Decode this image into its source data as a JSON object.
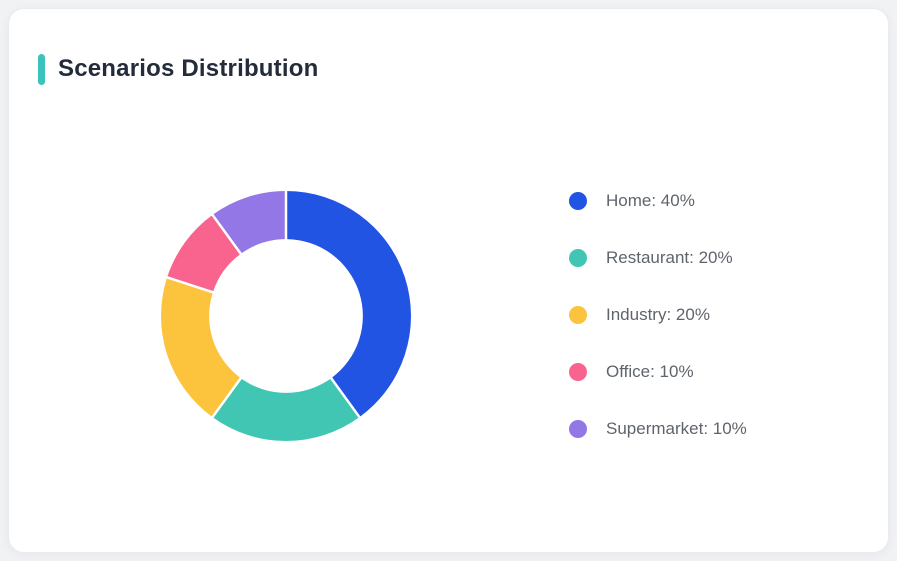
{
  "card": {
    "title": "Scenarios Distribution",
    "accent_color": "#3bc3bb"
  },
  "theme": {
    "page_bg": "#f1f2f4",
    "card_bg": "#ffffff",
    "card_border": "#e9ebef",
    "title_color": "#242b3a",
    "legend_text_color": "#5f646b",
    "slice_gap_color": "#ffffff"
  },
  "chart_data": {
    "type": "pie",
    "donut": true,
    "title": "Scenarios Distribution",
    "categories": [
      "Home",
      "Restaurant",
      "Industry",
      "Office",
      "Supermarket"
    ],
    "values": [
      40,
      20,
      20,
      10,
      10
    ],
    "unit": "%",
    "colors": [
      "#2254e3",
      "#41c6b4",
      "#fcc33d",
      "#f9648e",
      "#9377e6"
    ],
    "legend_labels": [
      "Home: 40%",
      "Restaurant: 20%",
      "Industry: 20%",
      "Office: 10%",
      "Supermarket: 10%"
    ],
    "legend_position": "right",
    "start_angle_deg": 0,
    "clockwise": true,
    "inner_radius_ratio": 0.615
  }
}
